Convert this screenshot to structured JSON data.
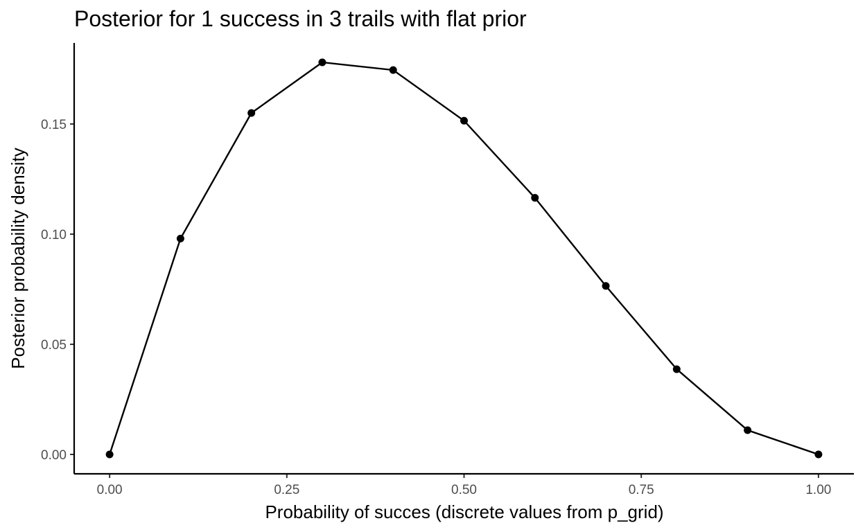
{
  "chart_data": {
    "type": "line",
    "title": "Posterior for 1 success in 3 trails with flat prior",
    "xlabel": "Probability of succes (discrete values from p_grid)",
    "ylabel": "Posterior probability density",
    "xlim": [
      -0.05,
      1.05
    ],
    "ylim": [
      -0.0088,
      0.1868
    ],
    "x_ticks": [
      0.0,
      0.25,
      0.5,
      0.75,
      1.0
    ],
    "x_tick_labels": [
      "0.00",
      "0.25",
      "0.50",
      "0.75",
      "1.00"
    ],
    "y_ticks": [
      0.0,
      0.05,
      0.1,
      0.15
    ],
    "y_tick_labels": [
      "0.00",
      "0.05",
      "0.10",
      "0.15"
    ],
    "grid": false,
    "series": [
      {
        "x": [
          0.0,
          0.1,
          0.2,
          0.3,
          0.4,
          0.5,
          0.6,
          0.7,
          0.8,
          0.9,
          1.0
        ],
        "values": [
          0.0,
          0.098,
          0.155,
          0.178,
          0.1745,
          0.1515,
          0.1165,
          0.0765,
          0.0387,
          0.011,
          0.0
        ],
        "color": "#000000",
        "markers": true
      }
    ]
  }
}
